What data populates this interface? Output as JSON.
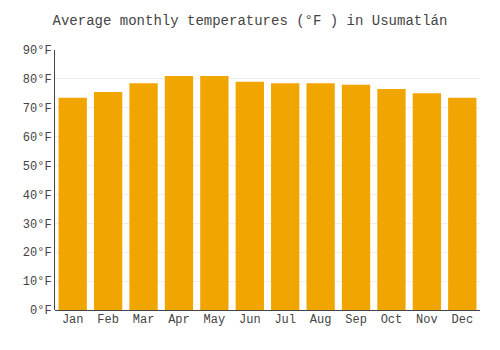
{
  "chart_data": {
    "type": "bar",
    "title": "Average monthly temperatures (°F ) in Usumatlán",
    "categories": [
      "Jan",
      "Feb",
      "Mar",
      "Apr",
      "May",
      "Jun",
      "Jul",
      "Aug",
      "Sep",
      "Oct",
      "Nov",
      "Dec"
    ],
    "values": [
      73.5,
      75.5,
      78.5,
      81.0,
      81.0,
      79.0,
      78.5,
      78.5,
      78.0,
      76.5,
      75.0,
      73.5
    ],
    "color": "#F0A500",
    "ylim": [
      0,
      90
    ],
    "yticks": [
      {
        "value": 0,
        "label": "0°F"
      },
      {
        "value": 10,
        "label": "10°F"
      },
      {
        "value": 20,
        "label": "20°F"
      },
      {
        "value": 30,
        "label": "30°F"
      },
      {
        "value": 40,
        "label": "40°F"
      },
      {
        "value": 50,
        "label": "50°F"
      },
      {
        "value": 60,
        "label": "60°F"
      },
      {
        "value": 70,
        "label": "70°F"
      },
      {
        "value": 80,
        "label": "80°F"
      },
      {
        "value": 90,
        "label": "90°F"
      }
    ],
    "grid": true
  }
}
